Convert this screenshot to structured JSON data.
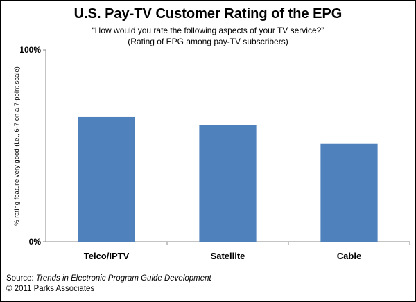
{
  "chart_data": {
    "type": "bar",
    "title": "U.S. Pay-TV Customer Rating of the EPG",
    "subtitle_line1": "“How would you rate the following aspects of your TV service?”",
    "subtitle_line2": "(Rating of EPG among pay-TV subscribers)",
    "ylabel": "% rating feature very good (i.e., 6-7 on a 7-point scale)",
    "xlabel": "",
    "ylim": [
      0,
      100
    ],
    "y_ticks": [
      "0%",
      "100%"
    ],
    "categories": [
      "Telco/IPTV",
      "Satellite",
      "Cable"
    ],
    "values": [
      65,
      61,
      51
    ],
    "grid": false,
    "legend": "none",
    "bar_color": "#4f81bd"
  },
  "source": {
    "label": "Source:",
    "text": "Trends in Electronic Program Guide Development",
    "copyright": "© 2011 Parks Associates"
  }
}
